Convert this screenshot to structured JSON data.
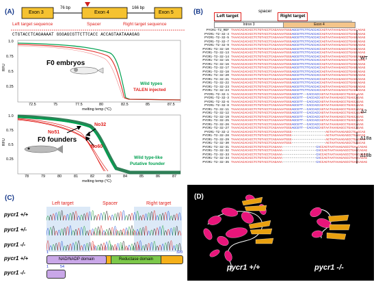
{
  "panelA": {
    "label": "(A)",
    "exons": [
      "Exon 3",
      "Exon 4",
      "Exon 5"
    ],
    "intron_sizes": [
      "76 bp",
      "166 bp"
    ],
    "seq_headers": [
      "Left target sequence",
      "Spacer",
      "Right target sequence"
    ],
    "sequence": "CTGTACCTCAGAAAAT GGGAGCGTTCTTCACC ACCAGTAATAAAGAG",
    "plot1": {
      "title": "F0 embryos",
      "ylabel": "RFU",
      "xlabel": "melting temp (°C)",
      "yticks": [
        "1.0",
        "0.75",
        "0.5",
        "0.25"
      ],
      "xticks": [
        "72.5",
        "75",
        "77.5",
        "80",
        "82.5",
        "85",
        "87.5"
      ],
      "legend": [
        "Wild types",
        "TALEN injected"
      ]
    },
    "plot2": {
      "title": "F0 founders",
      "ylabel": "RFU",
      "xlabel": "melting temp (°C)",
      "yticks": [
        "1.0",
        "0.75",
        "0.5",
        "0.25"
      ],
      "xticks": [
        "78",
        "79",
        "80",
        "81",
        "82",
        "83",
        "84",
        "85",
        "86",
        "87"
      ],
      "annotations": [
        "No32",
        "No51",
        "No60"
      ],
      "legend": [
        "Wild type-like",
        "Putative founder"
      ]
    }
  },
  "panelB": {
    "label": "(B)",
    "left_target": "Left target",
    "spacer": "spacer",
    "right_target": "Right target",
    "intron": "Intron 3",
    "exon": "Exon 4",
    "groups": [
      "WT",
      "Δ2",
      "Δ18a",
      "Δ18b"
    ],
    "rows": [
      "PYCR1-T2_REF",
      "PYCR1-T2-32-4",
      "PYCR1-T2-32-5",
      "PYCR1-T2-32-7",
      "PYCR1-T2-32-9",
      "PYCR1-T2-32-10",
      "PYCR1-T2-32-13",
      "PYCR1-T2-32-14",
      "PYCR1-T2-32-15",
      "PYCR1-T2-32-16",
      "PYCR1-T2-32-17",
      "PYCR1-T2-32-18",
      "PYCR1-T2-32-20",
      "PYCR1-T2-32-21",
      "PYCR1-T2-32-22",
      "PYCR1-T2-32-23",
      "PYCR1-T2-32-24",
      "PYCR1-T2-32-1",
      "PYCR1-T2-32-3",
      "PYCR1-T2-32-6",
      "PYCR1-T2-32-8",
      "PYCR1-T2-32-11",
      "PYCR1-T2-32-12",
      "PYCR1-T2-32-19",
      "PYCR1-T2-32-25",
      "PYCR1-T2-32-26",
      "PYCR1-T2-32-27",
      "PYCR1-T2-32-2",
      "PYCR1-T2-32-28",
      "PYCR1-T2-32-29",
      "PYCR1-T2-32-30",
      "PYCR1-T2-32-31",
      "PYCR1-T2-32-32",
      "PYCR1-T2-32-33",
      "PYCR1-T2-32-34",
      "PYCR1-T2-32-35"
    ],
    "seq_ref": "TAAACACACACCTCTGTACCTCAGAAAATGGGAGCGTTCTTCACCACCAGTAATAAAGAGCCTGAGCAGAG",
    "seq_d2": "TAAACACACACCTCTGTACCTCAGAAAATGGGAGCGTT--CACCACCAGTAATAAAGAGCCTGAGCAGAG",
    "seq_d18a": "TAAACACACACCTCTGTACCTCAGAAAATGGG------------------AGTAATAAAGAGCCTGAGCAG",
    "seq_d18b": "TAAACACACACCTCTGTACCTCAGAAA------------------CACCAGTAATAAAGAGCCTGAGCAGAG"
  },
  "panelC": {
    "label": "(C)",
    "headers": [
      "Left target",
      "Spacer",
      "Right target"
    ],
    "genotypes": [
      "pycr1 +/+",
      "pycr1 +/-",
      "pycr1 -/-"
    ],
    "domain_wt_label": "pycr1 +/+",
    "domain_mut_label": "pycr1 -/-",
    "domains": [
      "NAD/NADP domain",
      "Reductase domain"
    ],
    "wt_range": [
      "1",
      "320"
    ],
    "mut_range": [
      "1",
      "54"
    ]
  },
  "panelD": {
    "label": "(D)",
    "wt_label": "pycr1 +/+",
    "mut_label": "pycr1 -/-"
  },
  "colors": {
    "panel_label": "#1a3c8c",
    "red": "#e0201c",
    "green": "#00a050",
    "exon": "#f5c230",
    "blue": "#1a2fd0",
    "helix": "#e8157a",
    "sheet": "#e8a010"
  }
}
